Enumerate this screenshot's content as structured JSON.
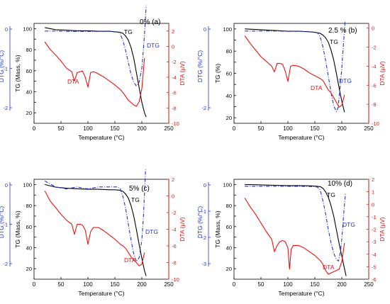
{
  "chart_data": [
    {
      "type": "line",
      "panel_label": "0% (a)",
      "xlabel": "Temperature (°C)",
      "ylabel_tg": "TG (Mass, %)",
      "ylabel_dtg": "DTG (%/°C)",
      "ylabel_dta": "DTA (µV)",
      "xlim": [
        0,
        250
      ],
      "xticks": [
        0,
        50,
        100,
        150,
        200,
        250
      ],
      "tg_lim": [
        10,
        105
      ],
      "tg_ticks": [
        20,
        30,
        40,
        50,
        60,
        70,
        80,
        90,
        100
      ],
      "dta_lim": [
        -10,
        3
      ],
      "dta_ticks": [
        2,
        0,
        -2,
        -4,
        -6,
        -8,
        -10
      ],
      "dtg_ticks": [
        0,
        -1,
        -2
      ],
      "series": [
        {
          "name": "TG",
          "color": "#000000",
          "axis": "tg",
          "x": [
            20,
            40,
            60,
            80,
            100,
            120,
            140,
            150,
            160,
            165,
            170,
            175,
            180,
            185,
            190,
            195,
            200,
            205,
            208
          ],
          "y": [
            101,
            99,
            98.5,
            98,
            98,
            97.5,
            97.5,
            97,
            96.5,
            95.5,
            93,
            89,
            82,
            72,
            58,
            44,
            30,
            20,
            16
          ]
        },
        {
          "name": "DTG",
          "color": "#2233cc",
          "axis": "dtg",
          "x": [
            20,
            40,
            60,
            80,
            100,
            120,
            140,
            155,
            160,
            165,
            170,
            175,
            180,
            185,
            190,
            195,
            200,
            203,
            206,
            208
          ],
          "y": [
            -0.05,
            -0.05,
            -0.06,
            -0.06,
            -0.06,
            -0.06,
            -0.06,
            -0.07,
            -0.12,
            -0.3,
            -0.55,
            -0.85,
            -1.15,
            -1.35,
            -1.45,
            -1.35,
            -1.0,
            -0.5,
            0.1,
            0.6
          ]
        },
        {
          "name": "DTA",
          "color": "#ee1111",
          "axis": "dta",
          "x": [
            20,
            30,
            40,
            50,
            60,
            70,
            75,
            80,
            85,
            90,
            95,
            100,
            105,
            110,
            115,
            120,
            130,
            140,
            150,
            160,
            165,
            170,
            175,
            180,
            185,
            190,
            195,
            200,
            205
          ],
          "y": [
            0.6,
            -0.4,
            -1.1,
            -1.9,
            -2.8,
            -3.3,
            -4.5,
            -3.4,
            -3.3,
            -3.2,
            -4.0,
            -5.3,
            -3.4,
            -3.3,
            -3.4,
            -3.6,
            -4.0,
            -4.5,
            -5.0,
            -5.6,
            -6.0,
            -6.5,
            -7.0,
            -7.3,
            -7.6,
            -7.8,
            -7.2,
            -5.5,
            -1.5
          ]
        }
      ],
      "annotations": [
        {
          "text": "TG",
          "series": "TG"
        },
        {
          "text": "DTG",
          "series": "DTG"
        },
        {
          "text": "DTA",
          "series": "DTA"
        }
      ]
    },
    {
      "type": "line",
      "panel_label": "2.5 % (b)",
      "xlabel": "Temperature (°C)",
      "ylabel_tg": "TG (%)",
      "ylabel_dtg": "DTG (%/°C)",
      "ylabel_dta": "DTA (µV)",
      "xlim": [
        0,
        250
      ],
      "xticks": [
        0,
        50,
        100,
        150,
        200,
        250
      ],
      "tg_lim": [
        15,
        105
      ],
      "tg_ticks": [
        20,
        30,
        40,
        50,
        60,
        70,
        80,
        90,
        100
      ],
      "dta_lim": [
        -10,
        0.5
      ],
      "dta_ticks": [
        0,
        -2,
        -4,
        -6,
        -8,
        -10
      ],
      "dtg_ticks": [
        0,
        -2
      ],
      "series": [
        {
          "name": "TG",
          "color": "#000000",
          "axis": "tg",
          "x": [
            20,
            40,
            60,
            80,
            100,
            120,
            140,
            150,
            160,
            165,
            170,
            175,
            180,
            185,
            190,
            195,
            200,
            205
          ],
          "y": [
            100,
            99.5,
            99,
            98.5,
            98,
            98,
            97.5,
            97,
            96,
            94.5,
            92,
            88,
            81,
            72,
            60,
            47,
            35,
            25
          ]
        },
        {
          "name": "DTG",
          "color": "#2233cc",
          "axis": "dtg",
          "x": [
            20,
            40,
            60,
            80,
            100,
            120,
            140,
            155,
            160,
            165,
            170,
            175,
            180,
            185,
            190,
            193,
            196,
            200,
            203,
            206
          ],
          "y": [
            -0.05,
            -0.05,
            -0.05,
            -0.05,
            -0.06,
            -0.06,
            -0.07,
            -0.1,
            -0.2,
            -0.45,
            -0.8,
            -1.2,
            -1.6,
            -1.95,
            -2.1,
            -2.0,
            -1.6,
            -1.0,
            -0.4,
            0.2
          ]
        },
        {
          "name": "DTA",
          "color": "#ee1111",
          "axis": "dta",
          "x": [
            20,
            30,
            40,
            50,
            60,
            70,
            75,
            80,
            85,
            90,
            95,
            100,
            105,
            110,
            120,
            130,
            140,
            150,
            160,
            165,
            170,
            175,
            180,
            185,
            190,
            195,
            200,
            205
          ],
          "y": [
            -0.8,
            -1.6,
            -2.3,
            -3.0,
            -3.5,
            -4.0,
            -4.6,
            -3.7,
            -3.7,
            -3.8,
            -4.5,
            -5.6,
            -4.0,
            -3.9,
            -4.0,
            -4.3,
            -4.7,
            -5.0,
            -5.3,
            -5.5,
            -6.0,
            -6.5,
            -6.8,
            -7.3,
            -7.8,
            -8.3,
            -8.1,
            -7.0
          ]
        }
      ],
      "annotations": [
        {
          "text": "TG",
          "series": "TG"
        },
        {
          "text": "DTG",
          "series": "DTG"
        },
        {
          "text": "DTA",
          "series": "DTA"
        }
      ]
    },
    {
      "type": "line",
      "panel_label": "5% (c)",
      "xlabel": "Temperature (°C)",
      "ylabel_tg": "TG (Mass, %)",
      "ylabel_dtg": "DTG (%/°C)",
      "ylabel_dta": "DTA (µV)",
      "xlim": [
        0,
        250
      ],
      "xticks": [
        0,
        50,
        100,
        150,
        200,
        250
      ],
      "tg_lim": [
        10,
        105
      ],
      "tg_ticks": [
        20,
        30,
        40,
        50,
        60,
        70,
        80,
        90,
        100
      ],
      "dta_lim": [
        -10,
        2
      ],
      "dta_ticks": [
        2,
        0,
        -2,
        -4,
        -6,
        -8,
        -10
      ],
      "dtg_ticks": [
        0,
        -1,
        -2
      ],
      "series": [
        {
          "name": "TG",
          "color": "#000000",
          "axis": "tg",
          "x": [
            20,
            40,
            60,
            80,
            100,
            120,
            140,
            150,
            160,
            165,
            170,
            175,
            180,
            185,
            190,
            195,
            200,
            205,
            208
          ],
          "y": [
            100,
            97.5,
            96.5,
            96,
            95.5,
            95.5,
            95,
            95,
            94.5,
            93.5,
            91,
            87,
            80,
            70,
            57,
            43,
            30,
            18,
            13
          ]
        },
        {
          "name": "DTG",
          "color": "#2233cc",
          "axis": "dtg",
          "x": [
            20,
            40,
            60,
            80,
            100,
            120,
            140,
            155,
            160,
            165,
            170,
            175,
            180,
            185,
            190,
            195,
            200,
            203,
            205,
            207
          ],
          "y": [
            0.1,
            -0.05,
            -0.1,
            -0.05,
            -0.1,
            -0.05,
            -0.05,
            -0.05,
            -0.1,
            -0.3,
            -0.6,
            -1.0,
            -1.4,
            -1.75,
            -1.95,
            -1.85,
            -1.4,
            -0.8,
            -0.2,
            0.4
          ]
        },
        {
          "name": "DTA",
          "color": "#ee1111",
          "axis": "dta",
          "x": [
            20,
            30,
            40,
            50,
            60,
            70,
            75,
            80,
            85,
            90,
            95,
            100,
            105,
            110,
            120,
            130,
            140,
            150,
            160,
            165,
            170,
            175,
            180,
            185,
            190,
            195,
            200,
            205
          ],
          "y": [
            0.6,
            -0.6,
            -1.4,
            -2.2,
            -2.9,
            -3.4,
            -4.6,
            -3.4,
            -3.4,
            -3.5,
            -4.1,
            -5.8,
            -4.3,
            -3.8,
            -3.8,
            -4.2,
            -4.7,
            -5.2,
            -5.8,
            -6.0,
            -6.3,
            -6.8,
            -7.3,
            -7.7,
            -8.0,
            -8.4,
            -8.2,
            -6.8
          ]
        }
      ],
      "annotations": [
        {
          "text": "TG",
          "series": "TG"
        },
        {
          "text": "DTG",
          "series": "DTG"
        },
        {
          "text": "DTA",
          "series": "DTA"
        }
      ]
    },
    {
      "type": "line",
      "panel_label": "10% (d)",
      "xlabel": "Temperature (°C)",
      "ylabel_tg": "TG (Mass, %)",
      "ylabel_dtg": "DTG (%/°C)",
      "ylabel_dta": "DTA (µV)",
      "xlim": [
        0,
        250
      ],
      "xticks": [
        0,
        50,
        100,
        150,
        200,
        250
      ],
      "tg_lim": [
        10,
        105
      ],
      "tg_ticks": [
        20,
        30,
        40,
        50,
        60,
        70,
        80,
        90,
        100
      ],
      "dta_lim": [
        -6,
        2
      ],
      "dta_ticks": [
        2,
        1,
        0,
        -1,
        -2,
        -3,
        -4,
        -5,
        -6
      ],
      "dtg_ticks": [
        0,
        -1,
        -2,
        -3
      ],
      "series": [
        {
          "name": "TG",
          "color": "#000000",
          "axis": "tg",
          "x": [
            20,
            40,
            60,
            80,
            100,
            120,
            140,
            150,
            160,
            165,
            170,
            175,
            180,
            185,
            190,
            195,
            200,
            205,
            208
          ],
          "y": [
            100,
            99.8,
            99.5,
            99.3,
            99,
            99,
            98.8,
            98.5,
            98,
            96.5,
            93,
            88,
            80,
            70,
            57,
            44,
            32,
            20,
            13
          ]
        },
        {
          "name": "DTG",
          "color": "#2233cc",
          "axis": "dtg",
          "x": [
            20,
            40,
            60,
            80,
            100,
            120,
            140,
            155,
            160,
            165,
            170,
            175,
            180,
            185,
            190,
            194,
            198,
            201,
            204,
            207
          ],
          "y": [
            -0.05,
            -0.05,
            -0.05,
            -0.05,
            -0.05,
            -0.05,
            -0.06,
            -0.08,
            -0.2,
            -0.6,
            -1.1,
            -1.7,
            -2.2,
            -2.6,
            -2.85,
            -2.9,
            -2.5,
            -1.8,
            -1.0,
            -0.3
          ]
        },
        {
          "name": "DTA",
          "color": "#ee1111",
          "axis": "dta",
          "x": [
            20,
            30,
            40,
            50,
            60,
            70,
            75,
            80,
            85,
            90,
            95,
            100,
            103,
            106,
            110,
            120,
            130,
            140,
            150,
            160,
            165,
            170,
            175,
            180,
            185,
            190,
            195,
            200,
            205
          ],
          "y": [
            0.5,
            -0.2,
            -0.8,
            -1.5,
            -2.2,
            -2.8,
            -3.8,
            -3.3,
            -3.0,
            -2.9,
            -3.0,
            -3.5,
            -5.2,
            -3.6,
            -3.3,
            -3.3,
            -3.5,
            -3.8,
            -4.1,
            -4.5,
            -4.8,
            -5.3,
            -5.6,
            -5.5,
            -5.4,
            -5.3,
            -5.2,
            -4.6,
            -3.1
          ]
        }
      ],
      "annotations": [
        {
          "text": "TG",
          "series": "TG"
        },
        {
          "text": "DTG",
          "series": "DTG"
        },
        {
          "text": "DTA",
          "series": "DTA"
        }
      ]
    }
  ]
}
